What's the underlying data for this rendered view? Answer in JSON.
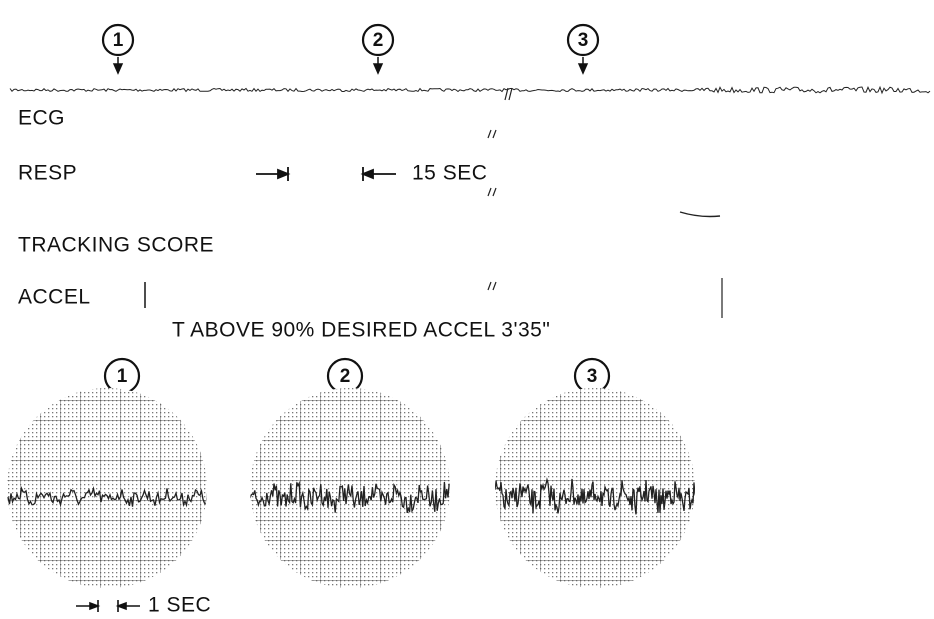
{
  "top_markers": [
    "1",
    "2",
    "3"
  ],
  "channels": [
    "ECG",
    "RESP",
    "TRACKING SCORE",
    "ACCEL"
  ],
  "time_scale": "15 SEC",
  "caption": "T ABOVE 90% DESIRED ACCEL 3'35\"",
  "scope_labels": [
    "1",
    "2",
    "3"
  ],
  "scope_scale": "1 SEC"
}
